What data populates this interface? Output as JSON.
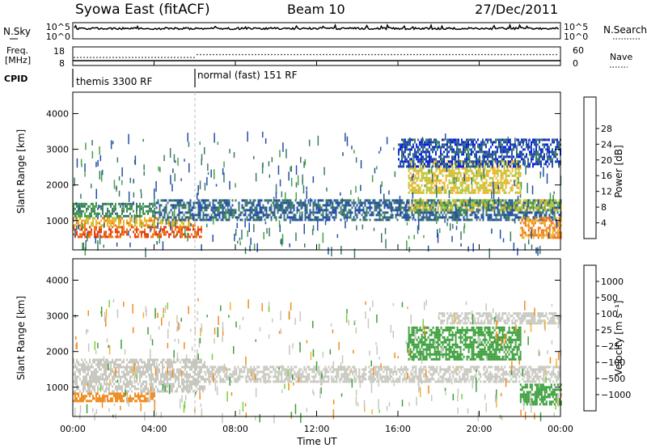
{
  "header": {
    "station": "Syowa East (fitACF)",
    "beam": "Beam 10",
    "date": "27/Dec/2011"
  },
  "noise_panel": {
    "left_label": "N.Sky",
    "right_label": "N.Search",
    "tick_top": "10^5",
    "tick_bottom": "10^0",
    "right_tick_top": "10^5",
    "right_tick_bottom": "10^0"
  },
  "freq_panel": {
    "left_label_1": "Freq.",
    "left_label_2": "[MHz]",
    "right_label": "Nave",
    "left_tick_top": "18",
    "left_tick_bottom": "8",
    "right_tick_top": "60",
    "right_tick_bottom": "0"
  },
  "cpid": {
    "label": "CPID",
    "segments": [
      {
        "label": "themis 3300 RF",
        "start_hour": 0
      },
      {
        "label": "normal (fast) 151 RF",
        "start_hour": 6
      }
    ]
  },
  "axes": {
    "ylabel": "Slant Range [km]",
    "xlabel": "Time UT",
    "y_ticks": [
      "1000",
      "2000",
      "3000",
      "4000"
    ],
    "x_ticks": [
      "00:00",
      "04:00",
      "08:00",
      "12:00",
      "16:00",
      "20:00",
      "00:00"
    ]
  },
  "colorbars": {
    "power": {
      "label": "Power [dB]",
      "ticks": [
        "4",
        "8",
        "12",
        "16",
        "20",
        "24",
        "28"
      ],
      "colors": [
        "#0a1ee6",
        "#244ea8",
        "#3c7a6a",
        "#46a046",
        "#b4c83c",
        "#f0b428",
        "#f07818",
        "#e63c14",
        "#e60000"
      ]
    },
    "velocity": {
      "label": "Velocity [m s⁻¹]",
      "ticks": [
        "1000",
        "500",
        "100",
        "25",
        "−25",
        "−100",
        "−500",
        "−1000"
      ],
      "colors": [
        "#2846c8",
        "#2c7878",
        "#3ca03c",
        "#78d23c",
        "#c8c8c0",
        "#f0b43c",
        "#f08c1e",
        "#f05a14",
        "#e61e0a"
      ]
    }
  },
  "chart_data": {
    "type": "heatmap",
    "title": "Syowa East (fitACF)",
    "subtitle": "Beam 10",
    "xlabel": "Time UT",
    "ylabel": "Slant Range [km]",
    "xlim_hours": [
      0,
      24
    ],
    "ylim_km": [
      180,
      4600
    ],
    "mode_change_hour": 6,
    "power_regions": [
      {
        "t": [
          0,
          6.3
        ],
        "r": [
          550,
          850
        ],
        "db": 28
      },
      {
        "t": [
          0,
          6.0
        ],
        "r": [
          850,
          1100
        ],
        "db": 22
      },
      {
        "t": [
          0,
          4.0
        ],
        "r": [
          1100,
          1500
        ],
        "db": 12
      },
      {
        "t": [
          4.0,
          24
        ],
        "r": [
          1050,
          1600
        ],
        "db": 8
      },
      {
        "t": [
          16.5,
          24
        ],
        "r": [
          1300,
          1600
        ],
        "db": 18
      },
      {
        "t": [
          16.5,
          22
        ],
        "r": [
          1800,
          2700
        ],
        "db": 20
      },
      {
        "t": [
          16,
          24
        ],
        "r": [
          2500,
          3300
        ],
        "db": 6
      },
      {
        "t": [
          22,
          24
        ],
        "r": [
          500,
          1100
        ],
        "db": 24
      }
    ],
    "velocity_regions": [
      {
        "t": [
          0,
          4.0
        ],
        "r": [
          600,
          850
        ],
        "v": -300
      },
      {
        "t": [
          0,
          6.5
        ],
        "r": [
          850,
          1800
        ],
        "v": 0
      },
      {
        "t": [
          6.5,
          24
        ],
        "r": [
          1150,
          1600
        ],
        "v": 0
      },
      {
        "t": [
          16.5,
          22
        ],
        "r": [
          1800,
          2700
        ],
        "v": 200
      },
      {
        "t": [
          22,
          24
        ],
        "r": [
          500,
          1100
        ],
        "v": 300
      },
      {
        "t": [
          18,
          24
        ],
        "r": [
          2800,
          3100
        ],
        "v": 0
      }
    ]
  }
}
